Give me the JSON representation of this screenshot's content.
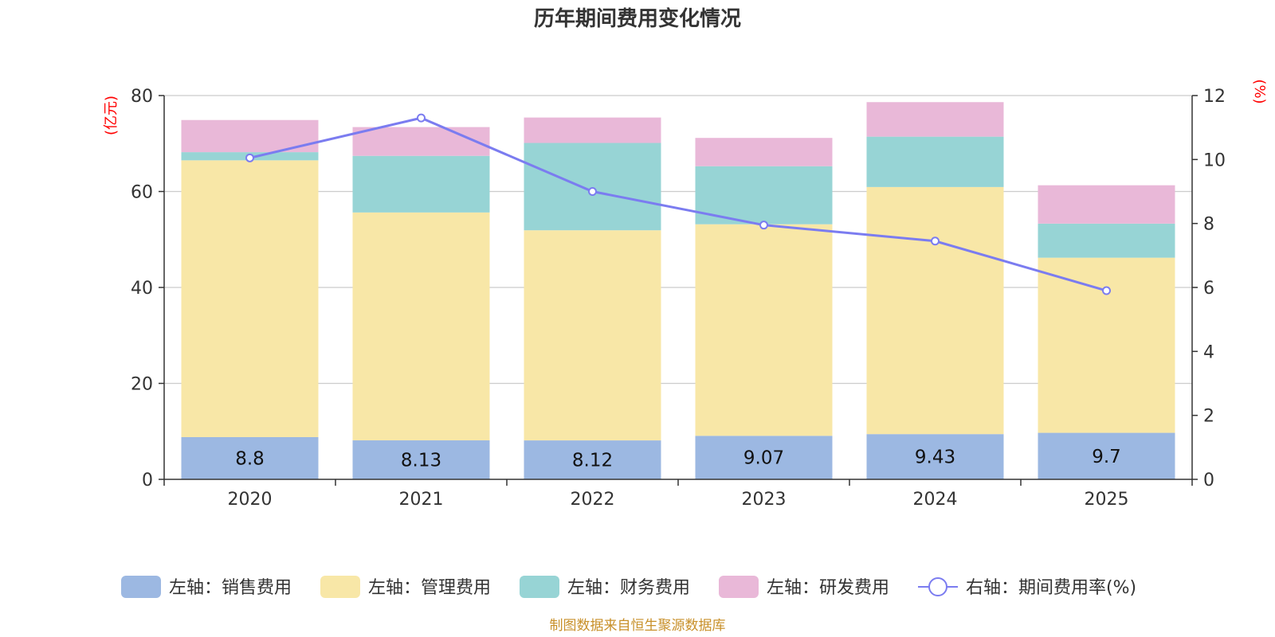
{
  "chart_data": {
    "type": "bar",
    "title": "历年期间费用变化情况",
    "left_unit": "(亿元)",
    "right_unit": "(%)",
    "categories": [
      "2020",
      "2021",
      "2022",
      "2023",
      "2024",
      "2025"
    ],
    "y_left": {
      "min": 0,
      "max": 80,
      "ticks": [
        0,
        20,
        40,
        60,
        80
      ]
    },
    "y_right": {
      "min": 0,
      "max": 12,
      "ticks": [
        0,
        2,
        4,
        6,
        8,
        10,
        12
      ]
    },
    "series": [
      {
        "name": "左轴：销售费用",
        "axis": "left",
        "kind": "bar",
        "color": "#9cb8e2",
        "values": [
          8.8,
          8.13,
          8.12,
          9.07,
          9.43,
          9.7
        ],
        "labels": [
          "8.8",
          "8.13",
          "8.12",
          "9.07",
          "9.43",
          "9.7"
        ]
      },
      {
        "name": "左轴：管理费用",
        "axis": "left",
        "kind": "bar",
        "color": "#f8e7a7",
        "values": [
          57.7,
          47.5,
          43.8,
          44.1,
          51.5,
          36.5
        ]
      },
      {
        "name": "左轴：财务费用",
        "axis": "left",
        "kind": "bar",
        "color": "#97d4d5",
        "values": [
          1.7,
          11.8,
          18.2,
          12.1,
          10.5,
          7.1
        ]
      },
      {
        "name": "左轴：研发费用",
        "axis": "left",
        "kind": "bar",
        "color": "#e9b8d8",
        "values": [
          6.7,
          6.0,
          5.3,
          5.9,
          7.2,
          8.0
        ]
      },
      {
        "name": "右轴：期间费用率(%)",
        "axis": "right",
        "kind": "line",
        "color": "#7b7cf0",
        "values": [
          10.05,
          11.3,
          9.0,
          7.95,
          7.45,
          5.9
        ]
      }
    ]
  },
  "footer": {
    "source": "制图数据来自恒生聚源数据库",
    "source_color": "#c8902a"
  },
  "colors": {
    "unit_label": "#ff0000",
    "axis": "#333333",
    "grid": "#cccccc"
  }
}
